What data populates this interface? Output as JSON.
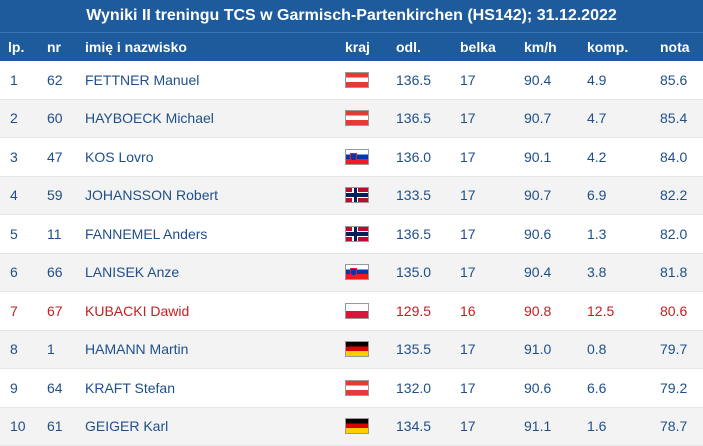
{
  "title": "Wyniki II treningu TCS w Garmisch-Partenkirchen (HS142); 31.12.2022",
  "columns": {
    "lp": "lp.",
    "nr": "nr",
    "name": "imię i nazwisko",
    "kraj": "kraj",
    "odl": "odl.",
    "belka": "belka",
    "kmh": "km/h",
    "komp": "komp.",
    "nota": "nota"
  },
  "colors": {
    "header_bg": "#1e5b9c",
    "text": "#1e4f8a",
    "highlight": "#c21f1f",
    "stripe": "#f3f3f3"
  },
  "rows": [
    {
      "lp": "1",
      "nr": "62",
      "name": "FETTNER Manuel",
      "flag": "austria-flag-icon",
      "odl": "136.5",
      "belka": "17",
      "kmh": "90.4",
      "komp": "4.9",
      "nota": "85.6"
    },
    {
      "lp": "2",
      "nr": "60",
      "name": "HAYBOECK Michael",
      "flag": "austria-flag-icon",
      "odl": "136.5",
      "belka": "17",
      "kmh": "90.7",
      "komp": "4.7",
      "nota": "85.4"
    },
    {
      "lp": "3",
      "nr": "47",
      "name": "KOS Lovro",
      "flag": "slovenia-flag-icon",
      "odl": "136.0",
      "belka": "17",
      "kmh": "90.1",
      "komp": "4.2",
      "nota": "84.0"
    },
    {
      "lp": "4",
      "nr": "59",
      "name": "JOHANSSON Robert",
      "flag": "norway-flag-icon",
      "odl": "133.5",
      "belka": "17",
      "kmh": "90.7",
      "komp": "6.9",
      "nota": "82.2"
    },
    {
      "lp": "5",
      "nr": "11",
      "name": "FANNEMEL Anders",
      "flag": "norway-flag-icon",
      "odl": "136.5",
      "belka": "17",
      "kmh": "90.6",
      "komp": "1.3",
      "nota": "82.0"
    },
    {
      "lp": "6",
      "nr": "66",
      "name": "LANISEK Anze",
      "flag": "slovenia-flag-icon",
      "odl": "135.0",
      "belka": "17",
      "kmh": "90.4",
      "komp": "3.8",
      "nota": "81.8"
    },
    {
      "lp": "7",
      "nr": "67",
      "name": "KUBACKI Dawid",
      "flag": "poland-flag-icon",
      "odl": "129.5",
      "belka": "16",
      "kmh": "90.8",
      "komp": "12.5",
      "nota": "80.6"
    },
    {
      "lp": "8",
      "nr": "1",
      "name": "HAMANN Martin",
      "flag": "germany-flag-icon",
      "odl": "135.5",
      "belka": "17",
      "kmh": "91.0",
      "komp": "0.8",
      "nota": "79.7"
    },
    {
      "lp": "9",
      "nr": "64",
      "name": "KRAFT Stefan",
      "flag": "austria-flag-icon",
      "odl": "132.0",
      "belka": "17",
      "kmh": "90.6",
      "komp": "6.6",
      "nota": "79.2"
    },
    {
      "lp": "10",
      "nr": "61",
      "name": "GEIGER Karl",
      "flag": "germany-flag-icon",
      "odl": "134.5",
      "belka": "17",
      "kmh": "91.1",
      "komp": "1.6",
      "nota": "78.7"
    }
  ]
}
